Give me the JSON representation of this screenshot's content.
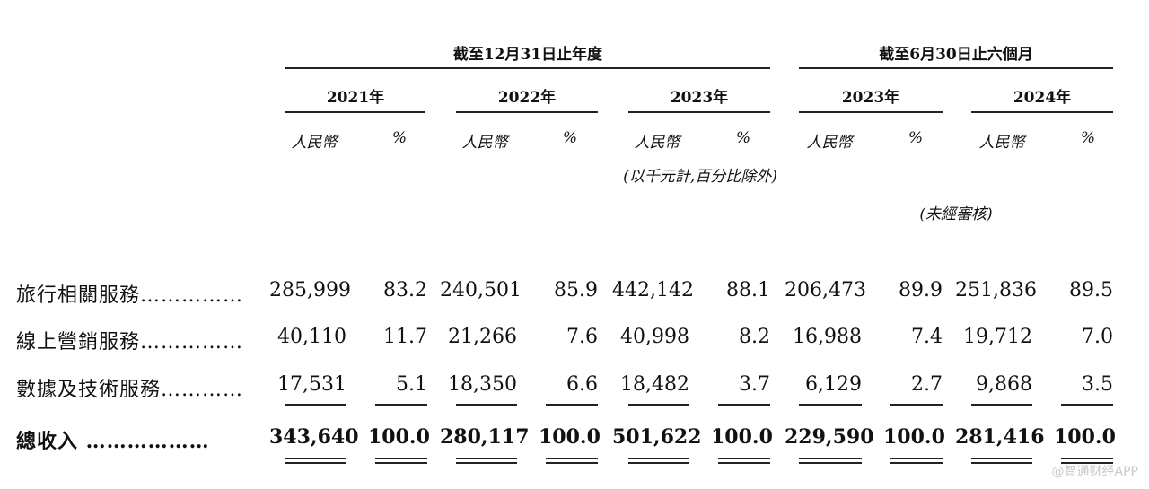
{
  "header": {
    "period_annual": "截至12月31日止年度",
    "period_half": "截至6月30日止六個月",
    "years": [
      "2021年",
      "2022年",
      "2023年",
      "2023年",
      "2024年"
    ],
    "unit_rmb": "人民幣",
    "unit_pct": "%",
    "note_units": "(以千元計,百分比除外)",
    "note_unaudited": "(未經審核)"
  },
  "rows": [
    {
      "label": "旅行相關服務……………",
      "values": [
        "285,999",
        "83.2",
        "240,501",
        "85.9",
        "442,142",
        "88.1",
        "206,473",
        "89.9",
        "251,836",
        "89.5"
      ]
    },
    {
      "label": "線上營銷服務……………",
      "values": [
        "40,110",
        "11.7",
        "21,266",
        "7.6",
        "40,998",
        "8.2",
        "16,988",
        "7.4",
        "19,712",
        "7.0"
      ]
    },
    {
      "label": "數據及技術服務…………",
      "values": [
        "17,531",
        "5.1",
        "18,350",
        "6.6",
        "18,482",
        "3.7",
        "6,129",
        "2.7",
        "9,868",
        "3.5"
      ]
    },
    {
      "label": "總收入 ………………",
      "values": [
        "343,640",
        "100.0",
        "280,117",
        "100.0",
        "501,622",
        "100.0",
        "229,590",
        "100.0",
        "281,416",
        "100.0"
      ]
    }
  ],
  "watermark": "@智通财经APP"
}
